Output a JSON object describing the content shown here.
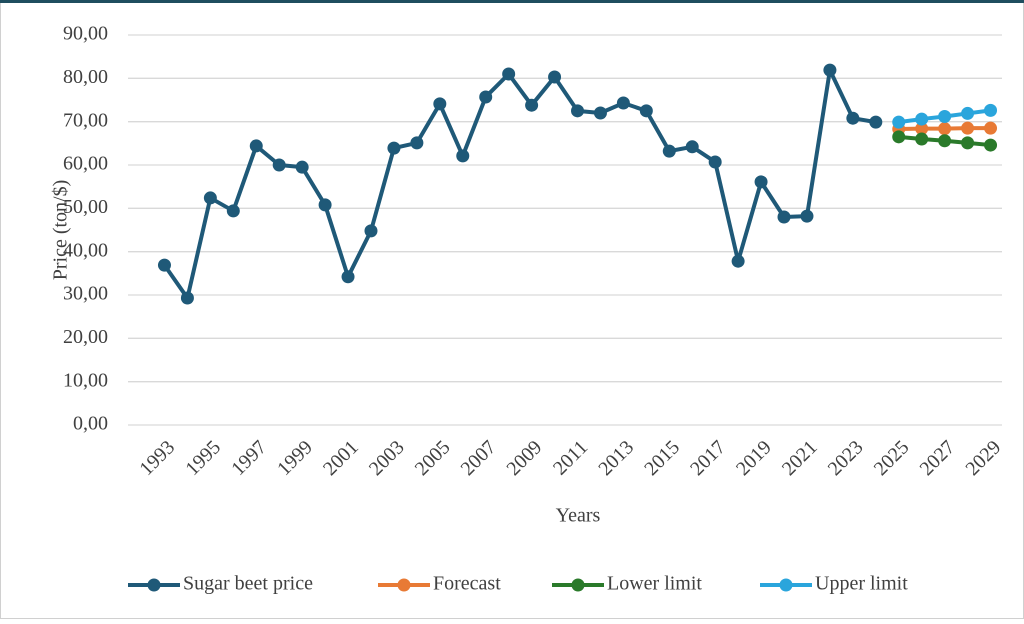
{
  "chart_data": {
    "type": "line",
    "x_label": "Years",
    "y_label": "Price (ton/$)",
    "x": [
      1993,
      1994,
      1995,
      1996,
      1997,
      1998,
      1999,
      2000,
      2001,
      2002,
      2003,
      2004,
      2005,
      2006,
      2007,
      2008,
      2009,
      2010,
      2011,
      2012,
      2013,
      2014,
      2015,
      2016,
      2017,
      2018,
      2019,
      2020,
      2021,
      2022,
      2023,
      2024,
      2025,
      2026,
      2027,
      2028,
      2029
    ],
    "series": [
      {
        "name": "Sugar beet price",
        "color": "#1f5978",
        "values": [
          36.9,
          29.3,
          52.4,
          49.4,
          64.4,
          60.0,
          59.5,
          50.8,
          34.2,
          44.8,
          63.9,
          65.1,
          74.1,
          62.1,
          75.7,
          81.0,
          73.8,
          80.3,
          72.5,
          72.0,
          74.3,
          72.5,
          63.2,
          64.2,
          60.7,
          37.8,
          56.1,
          48.0,
          48.2,
          81.9,
          70.8,
          69.9,
          null,
          null,
          null,
          null,
          null
        ]
      },
      {
        "name": "Forecast",
        "color": "#e87a35",
        "values": [
          null,
          null,
          null,
          null,
          null,
          null,
          null,
          null,
          null,
          null,
          null,
          null,
          null,
          null,
          null,
          null,
          null,
          null,
          null,
          null,
          null,
          null,
          null,
          null,
          null,
          null,
          null,
          null,
          null,
          null,
          null,
          null,
          68.3,
          68.4,
          68.4,
          68.5,
          68.5
        ]
      },
      {
        "name": "Lower limit",
        "color": "#2a7a2a",
        "values": [
          null,
          null,
          null,
          null,
          null,
          null,
          null,
          null,
          null,
          null,
          null,
          null,
          null,
          null,
          null,
          null,
          null,
          null,
          null,
          null,
          null,
          null,
          null,
          null,
          null,
          null,
          null,
          null,
          null,
          null,
          null,
          null,
          66.5,
          66.0,
          65.6,
          65.1,
          64.6
        ]
      },
      {
        "name": "Upper limit",
        "color": "#2aa5dc",
        "values": [
          null,
          null,
          null,
          null,
          null,
          null,
          null,
          null,
          null,
          null,
          null,
          null,
          null,
          null,
          null,
          null,
          null,
          null,
          null,
          null,
          null,
          null,
          null,
          null,
          null,
          null,
          null,
          null,
          null,
          null,
          null,
          null,
          69.9,
          70.6,
          71.2,
          71.9,
          72.6
        ]
      }
    ],
    "xlim": [
      1992.5,
      2029.5
    ],
    "xticks": [
      1993,
      1995,
      1997,
      1999,
      2001,
      2003,
      2005,
      2007,
      2009,
      2011,
      2013,
      2015,
      2017,
      2019,
      2021,
      2023,
      2025,
      2027,
      2029
    ],
    "ylim": [
      0,
      90
    ],
    "yticks": [
      {
        "value": 0,
        "label": "0,00"
      },
      {
        "value": 10,
        "label": "10,00"
      },
      {
        "value": 20,
        "label": "20,00"
      },
      {
        "value": 30,
        "label": "30,00"
      },
      {
        "value": 40,
        "label": "40,00"
      },
      {
        "value": 50,
        "label": "50,00"
      },
      {
        "value": 60,
        "label": "60,00"
      },
      {
        "value": 70,
        "label": "70,00"
      },
      {
        "value": 80,
        "label": "80,00"
      },
      {
        "value": 90,
        "label": "90,00"
      }
    ],
    "grid": true,
    "legend": "bottom"
  }
}
